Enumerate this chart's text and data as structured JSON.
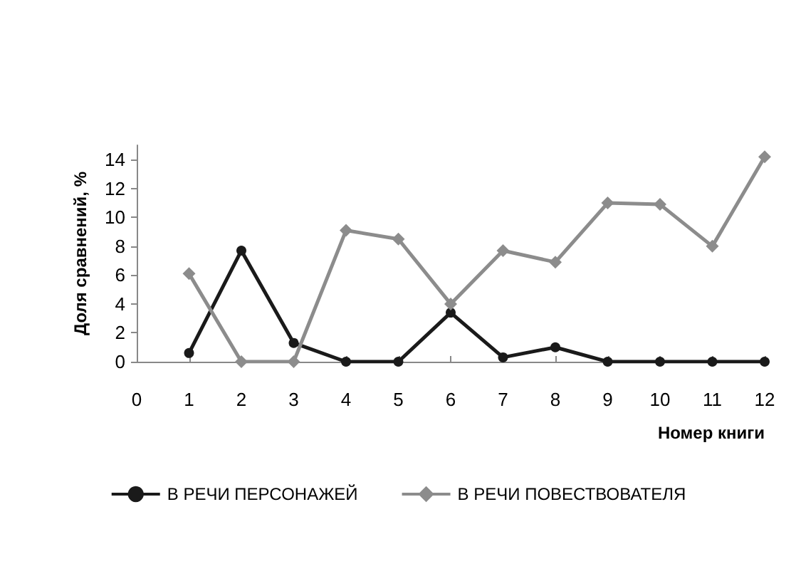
{
  "chart_data": {
    "type": "line",
    "xlabel": "Номер книги",
    "ylabel": "Доля сравнений, %",
    "x": [
      1,
      2,
      3,
      4,
      5,
      6,
      7,
      8,
      9,
      10,
      11,
      12
    ],
    "series": [
      {
        "name": "В РЕЧИ ПЕРСОНАЖЕЙ",
        "color": "#1a1a1a",
        "marker": "circle",
        "values": [
          0.6,
          7.7,
          1.3,
          0,
          0,
          3.4,
          0.3,
          1.0,
          0,
          0,
          0,
          0
        ]
      },
      {
        "name": "В РЕЧИ ПОВЕСТВОВАТЕЛЯ",
        "color": "#8c8c8c",
        "marker": "diamond",
        "values": [
          6.1,
          0,
          0,
          9.1,
          8.5,
          4.0,
          7.7,
          6.9,
          11.0,
          10.9,
          8.0,
          14.2
        ]
      }
    ],
    "xlim": [
      0,
      12
    ],
    "xticks": [
      0,
      1,
      2,
      3,
      4,
      5,
      6,
      7,
      8,
      9,
      10,
      11,
      12
    ],
    "ylim": [
      0,
      15
    ],
    "yticks": [
      0,
      2,
      4,
      6,
      8,
      10,
      12,
      14
    ],
    "grid": false,
    "legend": "bottom",
    "line_style": "solid"
  }
}
